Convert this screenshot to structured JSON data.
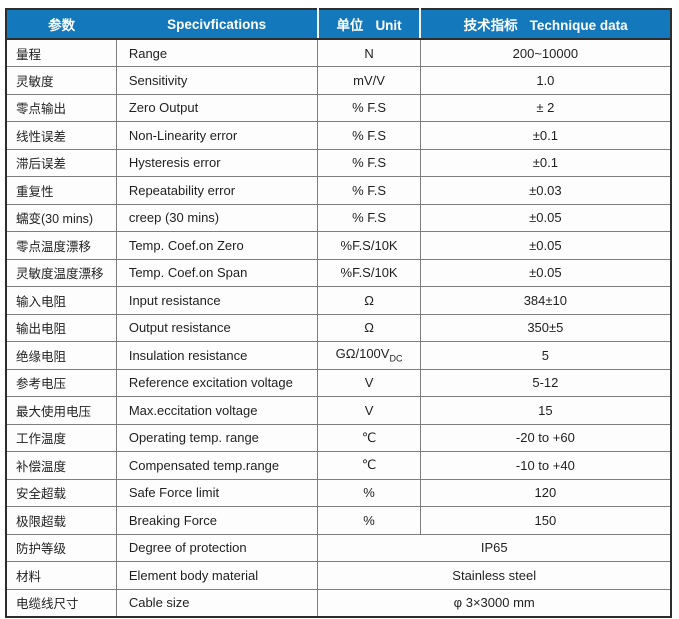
{
  "colors": {
    "header_bg": "#1478bd",
    "header_text": "#ffffff",
    "outer_border": "#2d2d2d",
    "inner_border": "#7e7e7e",
    "body_text": "#1f1f1f",
    "cell_bg": "#fdfdfd"
  },
  "header": {
    "param": "参数",
    "spec": "Specivfications",
    "unit_zh": "单位",
    "unit_en": "Unit",
    "tech_zh": "技术指标",
    "tech_en": "Technique data"
  },
  "rows": [
    {
      "param": "量程",
      "spec": "Range",
      "unit": "N",
      "value": "200~10000"
    },
    {
      "param": "灵敏度",
      "spec": "Sensitivity",
      "unit": "mV/V",
      "value": "1.0"
    },
    {
      "param": "零点输出",
      "spec": "Zero Output",
      "unit": "% F.S",
      "value": "± 2"
    },
    {
      "param": "线性误差",
      "spec": "Non-Linearity error",
      "unit": "% F.S",
      "value": "±0.1"
    },
    {
      "param": "滞后误差",
      "spec": "Hysteresis error",
      "unit": "% F.S",
      "value": "±0.1"
    },
    {
      "param": "重复性",
      "spec": "Repeatability error",
      "unit": "% F.S",
      "value": "±0.03"
    },
    {
      "param": "蠕变(30 mins)",
      "spec": "creep (30 mins)",
      "unit": "% F.S",
      "value": "±0.05"
    },
    {
      "param": "零点温度漂移",
      "spec": "Temp. Coef.on Zero",
      "unit": "%F.S/10K",
      "value": "±0.05"
    },
    {
      "param": "灵敏度温度漂移",
      "spec": "Temp. Coef.on Span",
      "unit": "%F.S/10K",
      "value": "±0.05"
    },
    {
      "param": "输入电阻",
      "spec": "Input resistance",
      "unit": "Ω",
      "value": "384±10"
    },
    {
      "param": "输出电阻",
      "spec": "Output resistance",
      "unit": "Ω",
      "value": "350±5"
    },
    {
      "param": "绝缘电阻",
      "spec": "Insulation resistance",
      "unit": "GΩ/100V",
      "unit_sub": "DC",
      "value": "5"
    },
    {
      "param": "参考电压",
      "spec": "Reference excitation voltage",
      "unit": "V",
      "value": "5-12"
    },
    {
      "param": "最大使用电压",
      "spec": "Max.eccitation voltage",
      "unit": "V",
      "value": "15"
    },
    {
      "param": "工作温度",
      "spec": "Operating temp. range",
      "unit": "℃",
      "value": "-20 to +60"
    },
    {
      "param": "补偿温度",
      "spec": "Compensated temp.range",
      "unit": "℃",
      "value": "-10 to +40"
    },
    {
      "param": "安全超载",
      "spec": "Safe Force limit",
      "unit": "%",
      "value": "120"
    },
    {
      "param": "极限超载",
      "spec": "Breaking Force",
      "unit": "%",
      "value": "150"
    },
    {
      "param": "防护等级",
      "spec": "Degree of protection",
      "merged": true,
      "value": "IP65"
    },
    {
      "param": "材料",
      "spec": "Element body material",
      "merged": true,
      "value": "Stainless steel"
    },
    {
      "param": "电缆线尺寸",
      "spec": "Cable size",
      "merged": true,
      "value": "φ 3×3000 mm"
    }
  ]
}
